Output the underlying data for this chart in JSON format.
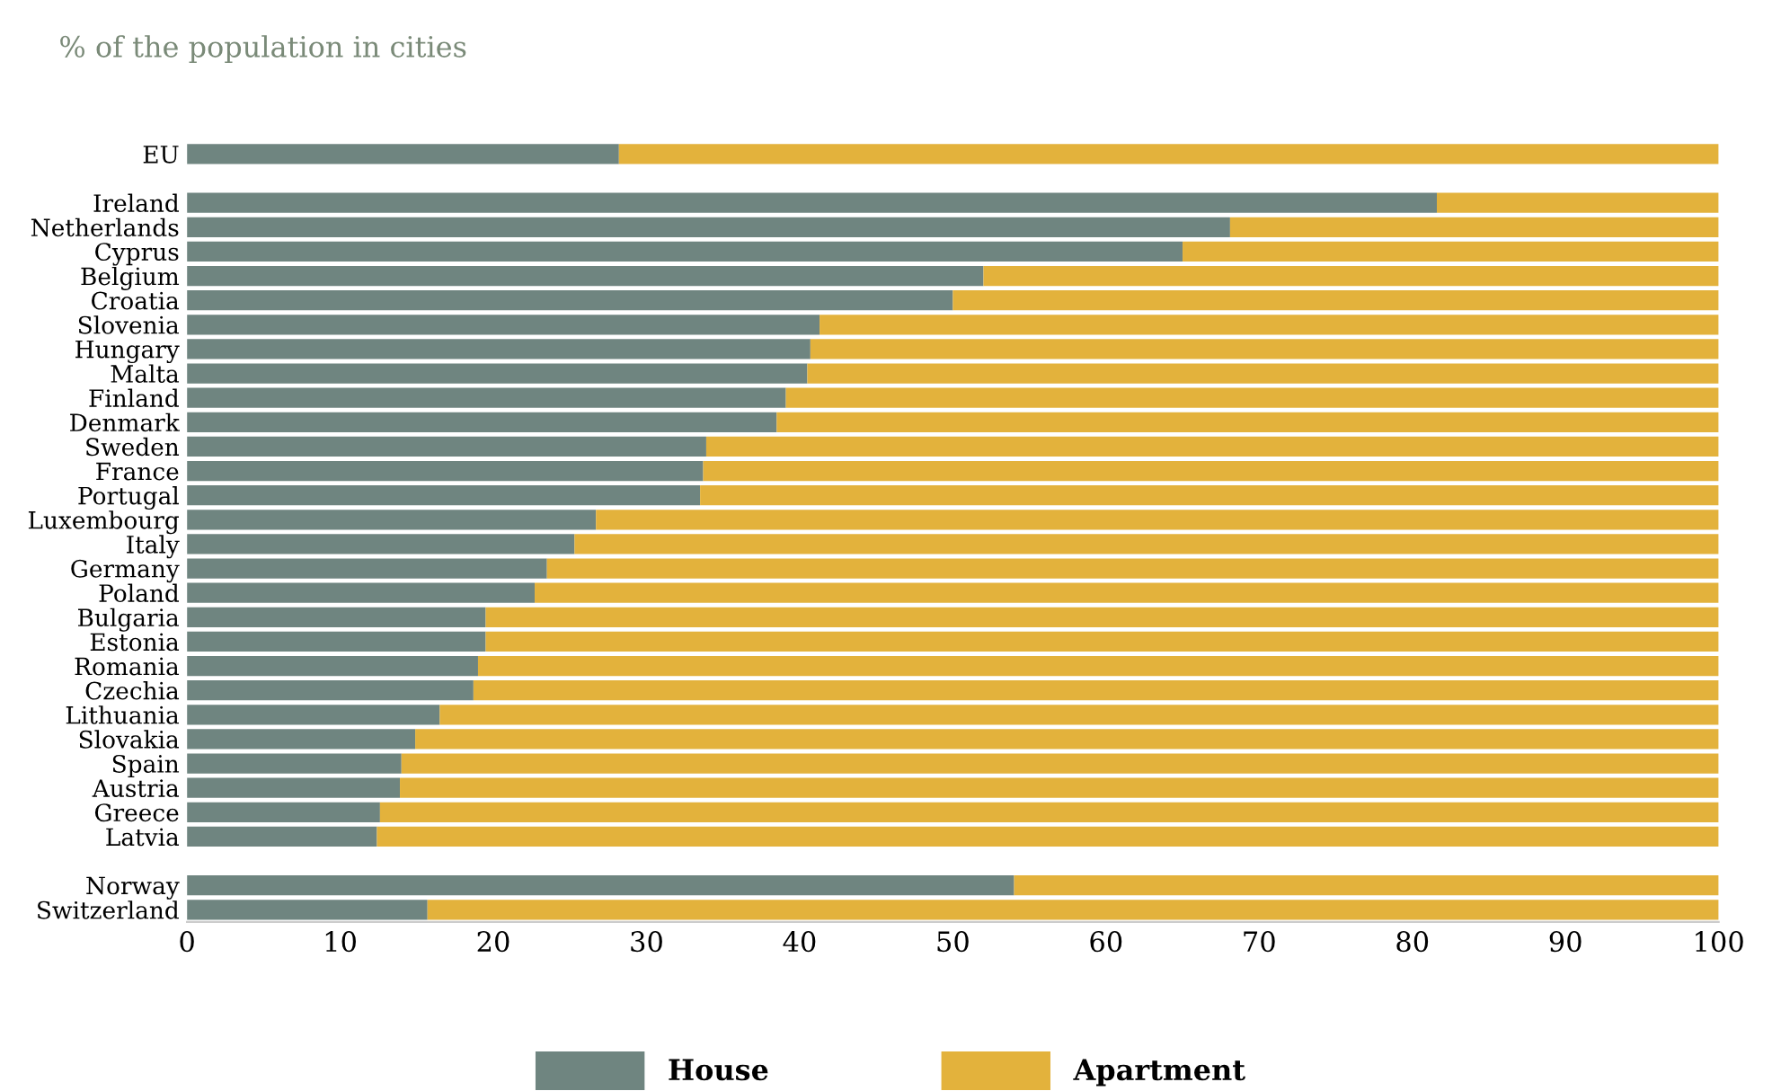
{
  "chart_data": {
    "type": "bar",
    "orientation": "horizontal",
    "stacked": true,
    "title": "% of the population in cities",
    "categories": [
      "EU",
      null,
      "Ireland",
      "Netherlands",
      "Cyprus",
      "Belgium",
      "Croatia",
      "Slovenia",
      "Hungary",
      "Malta",
      "Finland",
      "Denmark",
      "Sweden",
      "France",
      "Portugal",
      "Luxembourg",
      "Italy",
      "Germany",
      "Poland",
      "Bulgaria",
      "Estonia",
      "Romania",
      "Czechia",
      "Lithuania",
      "Slovakia",
      "Spain",
      "Austria",
      "Greece",
      "Latvia",
      null,
      "Norway",
      "Switzerland"
    ],
    "series": [
      {
        "name": "House",
        "color": "#6f8580",
        "values": [
          28.2,
          null,
          81.6,
          68.1,
          65.0,
          52.0,
          50.0,
          41.3,
          40.7,
          40.5,
          39.1,
          38.5,
          33.9,
          33.7,
          33.5,
          26.7,
          25.3,
          23.5,
          22.7,
          19.5,
          19.5,
          19.0,
          18.7,
          16.5,
          14.9,
          14.0,
          13.9,
          12.6,
          12.4,
          null,
          54.0,
          15.7
        ]
      },
      {
        "name": "Apartment",
        "color": "#e3b23c",
        "values": [
          71.8,
          null,
          18.4,
          31.9,
          35.0,
          48.0,
          50.0,
          58.7,
          59.3,
          59.5,
          60.9,
          61.5,
          66.1,
          66.3,
          66.5,
          73.3,
          74.7,
          76.5,
          77.3,
          80.5,
          80.5,
          81.0,
          81.3,
          83.5,
          85.1,
          86.0,
          86.1,
          87.4,
          87.6,
          null,
          46.0,
          84.3
        ]
      }
    ],
    "xlim": [
      0,
      100
    ],
    "xticks": [
      0,
      10,
      20,
      30,
      40,
      50,
      60,
      70,
      80,
      90,
      100
    ],
    "grid": false,
    "legend": "bottom"
  }
}
